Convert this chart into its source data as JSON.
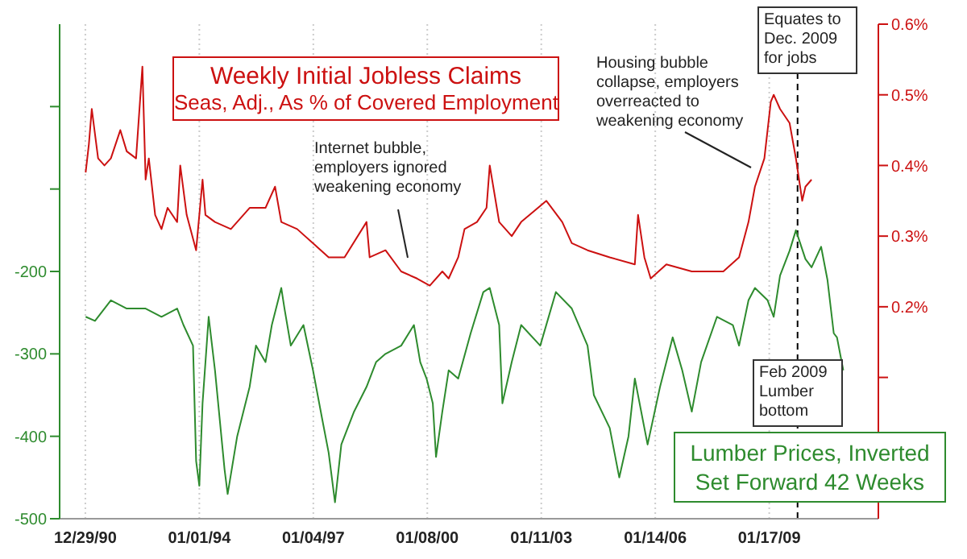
{
  "chart_data": {
    "type": "line",
    "title": "Weekly Initial Jobless Claims",
    "subtitle": "Seas, Adj., As % of Covered Employment",
    "annotations": [
      "Internet bubble, employers ignored weakening economy",
      "Housing bubble collapse, employers overreacted to weakening economy",
      "Equates to Dec. 2009 for jobs",
      "Feb 2009 Lumber bottom"
    ],
    "series": [
      {
        "color": "#cc1111",
        "axis": "y2",
        "x": [
          "1991-01",
          "1991-02",
          "1991-03",
          "1991-05",
          "1991-07",
          "1991-09",
          "1991-12",
          "1992-02",
          "1992-05",
          "1992-07",
          "1992-08",
          "1992-09",
          "1992-11",
          "1993-01",
          "1993-03",
          "1993-06",
          "1993-07",
          "1993-09",
          "1993-12",
          "1994-02",
          "1994-03",
          "1994-06",
          "1994-11",
          "1995-05",
          "1995-10",
          "1996-01",
          "1996-03",
          "1996-08",
          "1997-01",
          "1997-06",
          "1997-11",
          "1998-06",
          "1998-07",
          "1998-12",
          "1999-05",
          "1999-10",
          "2000-02",
          "2000-06",
          "2000-08",
          "2000-11",
          "2001-01",
          "2001-05",
          "2001-08",
          "2001-09",
          "2001-12",
          "2002-04",
          "2002-07",
          "2003-03",
          "2003-08",
          "2003-11",
          "2004-04",
          "2004-11",
          "2005-07",
          "2005-08",
          "2005-10",
          "2005-12",
          "2006-05",
          "2007-01",
          "2007-06",
          "2007-11",
          "2008-04",
          "2008-07",
          "2008-09",
          "2008-12",
          "2009-02",
          "2009-03",
          "2009-05",
          "2009-08",
          "2009-10",
          "2009-12",
          "2010-01",
          "2010-03"
        ],
        "values": [
          0.39,
          0.43,
          0.48,
          0.41,
          0.4,
          0.41,
          0.45,
          0.42,
          0.41,
          0.54,
          0.38,
          0.41,
          0.33,
          0.31,
          0.34,
          0.32,
          0.4,
          0.33,
          0.28,
          0.38,
          0.33,
          0.32,
          0.31,
          0.34,
          0.34,
          0.37,
          0.32,
          0.31,
          0.29,
          0.27,
          0.27,
          0.32,
          0.27,
          0.28,
          0.25,
          0.24,
          0.23,
          0.25,
          0.24,
          0.27,
          0.31,
          0.32,
          0.34,
          0.4,
          0.32,
          0.3,
          0.32,
          0.35,
          0.32,
          0.29,
          0.28,
          0.27,
          0.26,
          0.33,
          0.27,
          0.24,
          0.26,
          0.25,
          0.25,
          0.25,
          0.27,
          0.32,
          0.37,
          0.41,
          0.49,
          0.5,
          0.48,
          0.46,
          0.41,
          0.35,
          0.37,
          0.38
        ]
      },
      {
        "name": "Lumber Prices, Inverted Set Forward 42 Weeks",
        "color": "#2e8b2e",
        "x": [
          "1991-01",
          "1991-04",
          "1991-09",
          "1992-02",
          "1992-08",
          "1993-01",
          "1993-06",
          "1993-08",
          "1993-11",
          "1993-12",
          "1994-01",
          "1994-02",
          "1994-04",
          "1994-06",
          "1994-09",
          "1994-10",
          "1995-01",
          "1995-05",
          "1995-07",
          "1995-10",
          "1995-12",
          "1996-03",
          "1996-04",
          "1996-06",
          "1996-10",
          "1997-01",
          "1997-04",
          "1997-06",
          "1997-08",
          "1997-10",
          "1998-02",
          "1998-06",
          "1998-09",
          "1998-12",
          "1999-05",
          "1999-09",
          "1999-11",
          "2000-01",
          "2000-03",
          "2000-04",
          "2000-06",
          "2000-08",
          "2000-11",
          "2001-03",
          "2001-07",
          "2001-09",
          "2001-12",
          "2002-01",
          "2002-04",
          "2002-07",
          "2003-01",
          "2003-06",
          "2003-11",
          "2004-04",
          "2004-06",
          "2004-11",
          "2005-02",
          "2005-05",
          "2005-07",
          "2005-10",
          "2005-11",
          "2006-03",
          "2006-07",
          "2006-10",
          "2007-01",
          "2007-04",
          "2007-09",
          "2008-02",
          "2008-04",
          "2008-07",
          "2008-09",
          "2009-01",
          "2009-03",
          "2009-05",
          "2009-08",
          "2009-10",
          "2010-01",
          "2010-03",
          "2010-06",
          "2010-08",
          "2010-10",
          "2010-11",
          "2011-01"
        ],
        "values": [
          -255,
          -260,
          -235,
          -245,
          -245,
          -255,
          -245,
          -265,
          -290,
          -430,
          -460,
          -360,
          -255,
          -320,
          -440,
          -470,
          -400,
          -340,
          -290,
          -310,
          -265,
          -220,
          -245,
          -290,
          -265,
          -320,
          -380,
          -420,
          -480,
          -410,
          -370,
          -340,
          -310,
          -300,
          -290,
          -265,
          -310,
          -330,
          -360,
          -425,
          -370,
          -320,
          -330,
          -275,
          -225,
          -220,
          -265,
          -360,
          -310,
          -265,
          -290,
          -225,
          -245,
          -290,
          -350,
          -390,
          -450,
          -400,
          -330,
          -390,
          -410,
          -340,
          -280,
          -320,
          -370,
          -310,
          -255,
          -265,
          -290,
          -235,
          -220,
          -235,
          -255,
          -205,
          -175,
          -150,
          -185,
          -195,
          -170,
          -210,
          -275,
          -280,
          -320
        ]
      }
    ],
    "xlim": [
      "1990-04-25",
      "2011-12-05"
    ],
    "xticks": [
      {
        "value": "1990-12-29",
        "label": "12/29/90"
      },
      {
        "value": "1994-01-01",
        "label": "01/01/94"
      },
      {
        "value": "1997-01-04",
        "label": "01/04/97"
      },
      {
        "value": "2000-01-08",
        "label": "01/08/00"
      },
      {
        "value": "2003-01-11",
        "label": "01/11/03"
      },
      {
        "value": "2006-01-14",
        "label": "01/14/06"
      },
      {
        "value": "2009-01-17",
        "label": "01/17/09"
      }
    ],
    "ylim": [
      -500,
      100
    ],
    "yticks": [
      -500,
      -400,
      -300,
      -200,
      {
        "value": -100,
        "label": null
      },
      {
        "value": 0,
        "label": null
      }
    ],
    "y2lim": [
      -0.1,
      0.6
    ],
    "y2ticks": [
      {
        "value": 0.1,
        "label": null
      },
      {
        "value": 0.2,
        "label": "0.2%"
      },
      {
        "value": 0.3,
        "label": "0.3%"
      },
      {
        "value": 0.4,
        "label": "0.4%"
      },
      {
        "value": 0.5,
        "label": "0.5%"
      },
      {
        "value": 0.6,
        "label": "0.6%"
      }
    ],
    "ref_lines": [
      {
        "axis": "x",
        "value": "2009-10-17",
        "label": null,
        "color": "#000000",
        "line_style": "dashed"
      }
    ],
    "grid": "x",
    "legend": "bottom right",
    "marker": "none",
    "line_style": "solid"
  }
}
